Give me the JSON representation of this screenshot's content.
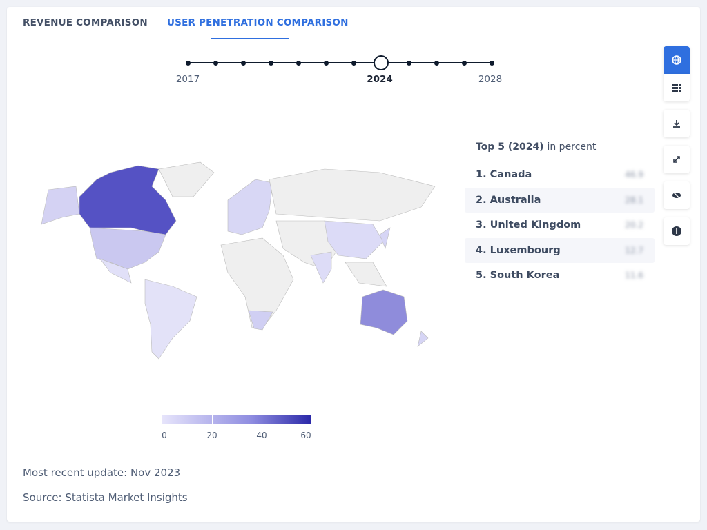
{
  "tabs": [
    {
      "label": "REVENUE COMPARISON",
      "active": false
    },
    {
      "label": "USER PENETRATION COMPARISON",
      "active": true
    }
  ],
  "timeline": {
    "years": [
      2017,
      2018,
      2019,
      2020,
      2021,
      2022,
      2023,
      2024,
      2025,
      2026,
      2027,
      2028
    ],
    "selected": 2024,
    "labels": {
      "start": "2017",
      "selected": "2024",
      "end": "2028"
    }
  },
  "legend": {
    "ticks": [
      "0",
      "20",
      "40",
      "60"
    ],
    "colors": [
      "#e6e4fb",
      "#2a28a8"
    ]
  },
  "top5": {
    "title": "Top 5 (2024)",
    "unit": "in percent",
    "items": [
      {
        "label": "1. Canada",
        "value": "46.9"
      },
      {
        "label": "2. Australia",
        "value": "28.1"
      },
      {
        "label": "3. United Kingdom",
        "value": "20.2"
      },
      {
        "label": "4. Luxembourg",
        "value": "12.7"
      },
      {
        "label": "5. South Korea",
        "value": "11.6"
      }
    ]
  },
  "tools": [
    "globe-icon",
    "table-icon",
    "download-icon",
    "fullscreen-icon",
    "hide-icon",
    "info-icon"
  ],
  "footer": {
    "update": "Most recent update: Nov 2023",
    "source": "Source: Statista Market Insights"
  }
}
